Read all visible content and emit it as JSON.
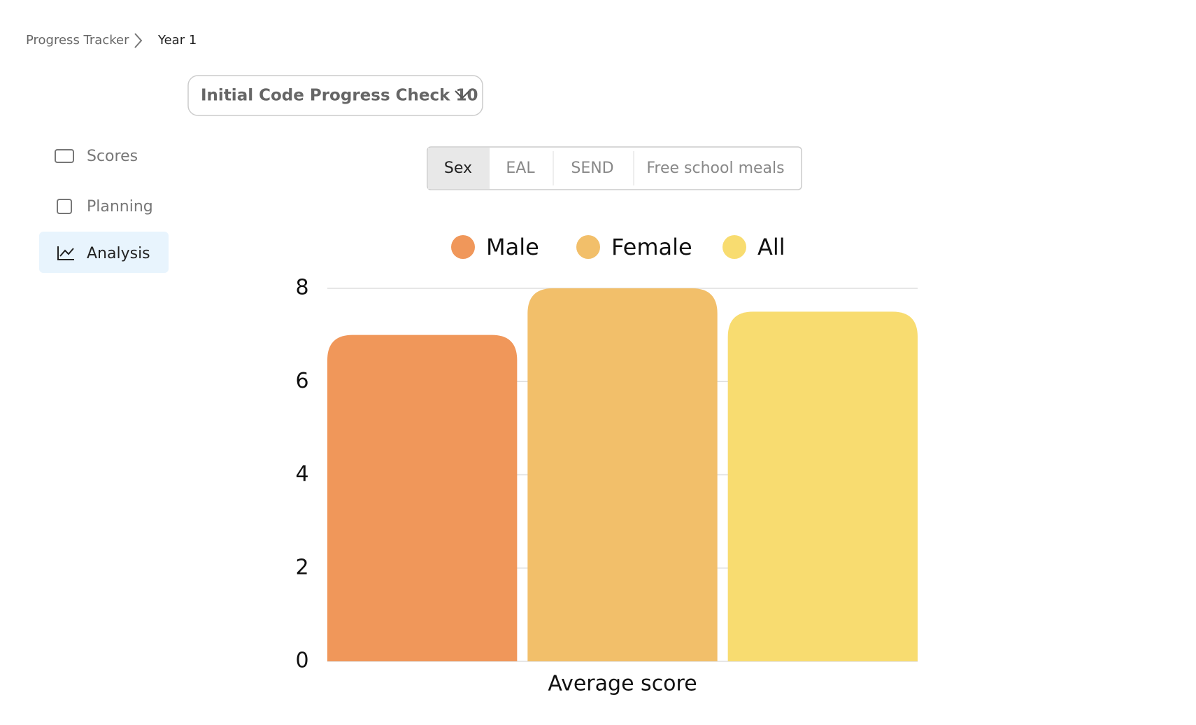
{
  "breadcrumb": [
    "Progress Tracker",
    "Year 1"
  ],
  "dropdown": "Initial Code Progress Check 10",
  "nav": [
    "Scores",
    "Planning",
    "Analysis"
  ],
  "tabs": [
    "Sex",
    "EAL",
    "SEND",
    "Free school meals"
  ],
  "chart_data": {
    "type": "bar",
    "categories": [
      "Average score"
    ],
    "series": [
      {
        "name": "Male",
        "color": "#f0975a",
        "values": [
          7
        ]
      },
      {
        "name": "Female",
        "color": "#f2bf6a",
        "values": [
          8
        ]
      },
      {
        "name": "All",
        "color": "#f8dc70",
        "values": [
          7.5
        ]
      }
    ],
    "ylim": [
      0,
      8
    ],
    "yticks": [
      0,
      2,
      4,
      6,
      8
    ],
    "grid": true
  }
}
